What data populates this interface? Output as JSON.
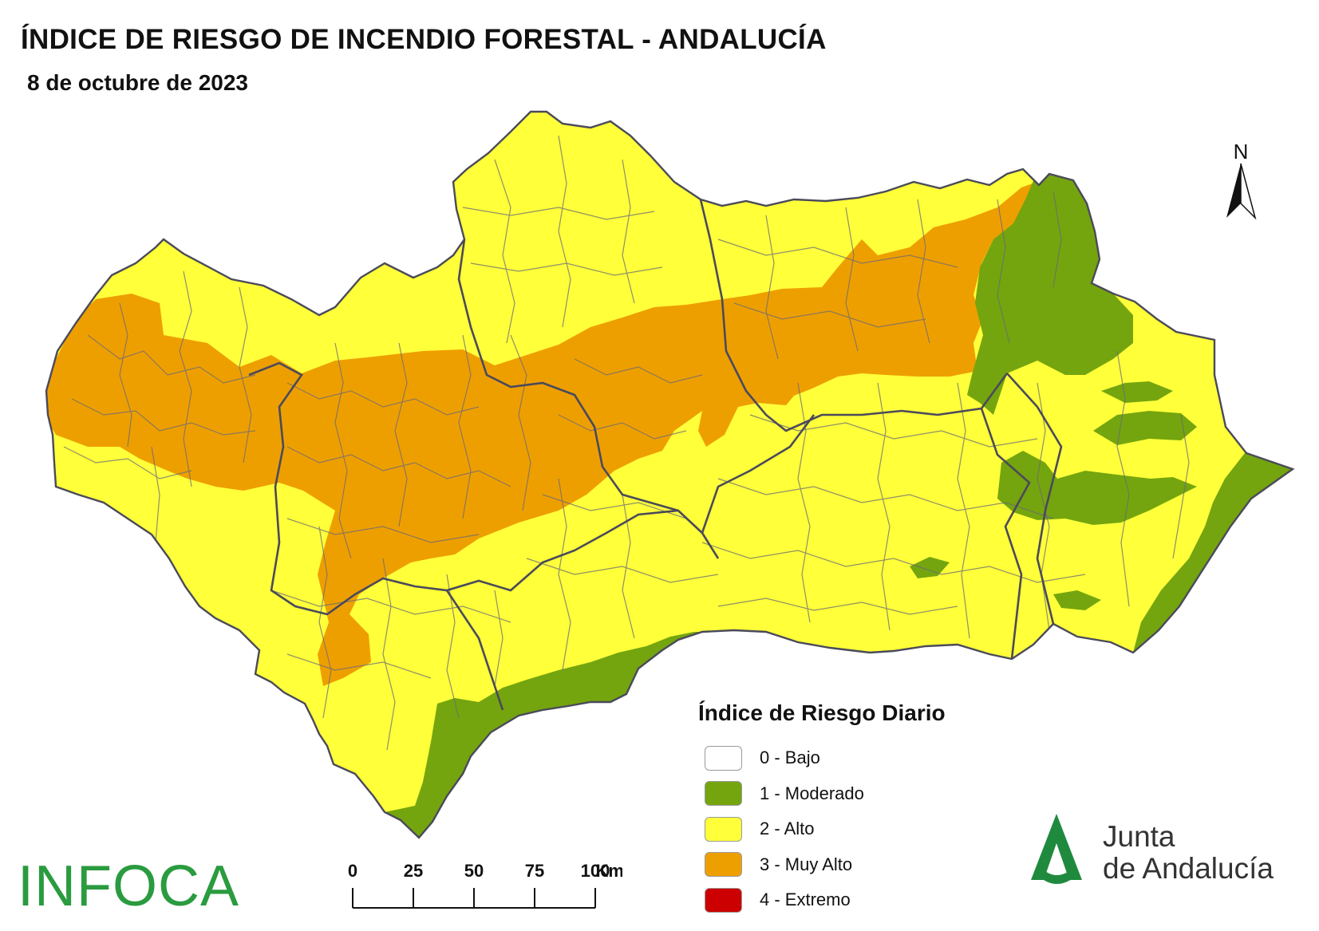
{
  "title": "ÍNDICE DE RIESGO DE INCENDIO FORESTAL - ANDALUCÍA",
  "subtitle": "8 de octubre de 2023",
  "north_label": "N",
  "legend": {
    "title": "Índice de Riesgo Diario",
    "items": [
      {
        "label": "0 - Bajo",
        "color": "#ffffff"
      },
      {
        "label": "1 - Moderado",
        "color": "#74a50e"
      },
      {
        "label": "2 - Alto",
        "color": "#ffff3a"
      },
      {
        "label": "3 - Muy Alto",
        "color": "#ee9f00"
      },
      {
        "label": "4 - Extremo",
        "color": "#cc0000"
      }
    ]
  },
  "scalebar": {
    "ticks": [
      "0",
      "25",
      "50",
      "75",
      "100"
    ],
    "unit": "Km"
  },
  "logos": {
    "infoca": "INFOCA",
    "junta_line1": "Junta",
    "junta_line2": "de Andalucía"
  },
  "colors": {
    "alto": "#ffff3a",
    "muy_alto": "#ee9f00",
    "moderado": "#74a50e",
    "borders": "#5a5a6a",
    "brand_green": "#2a9b3f"
  }
}
